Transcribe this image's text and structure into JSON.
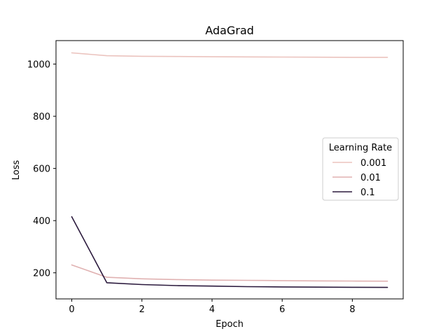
{
  "chart_data": {
    "type": "line",
    "title": "AdaGrad",
    "xlabel": "Epoch",
    "ylabel": "Loss",
    "xlim": [
      -0.45,
      9.45
    ],
    "ylim": [
      100,
      1090
    ],
    "xticks": [
      0,
      2,
      4,
      6,
      8
    ],
    "yticks": [
      200,
      400,
      600,
      800,
      1000
    ],
    "grid": false,
    "legend": {
      "title": "Learning Rate",
      "placement": "center-right"
    },
    "x": [
      0,
      1,
      2,
      3,
      4,
      5,
      6,
      7,
      8,
      9
    ],
    "series": [
      {
        "name": "0.001",
        "color": "#ebc3be",
        "values": [
          1043,
          1032,
          1030,
          1029,
          1028,
          1027.5,
          1027,
          1026.5,
          1026,
          1026
        ]
      },
      {
        "name": "0.01",
        "color": "#e0b1b1",
        "values": [
          230,
          183,
          177,
          174,
          172,
          171,
          170,
          169,
          168.5,
          168
        ]
      },
      {
        "name": "0.1",
        "color": "#2b1a3d",
        "values": [
          415,
          162,
          155,
          151,
          149,
          147,
          146,
          145,
          144.5,
          144
        ]
      }
    ]
  }
}
